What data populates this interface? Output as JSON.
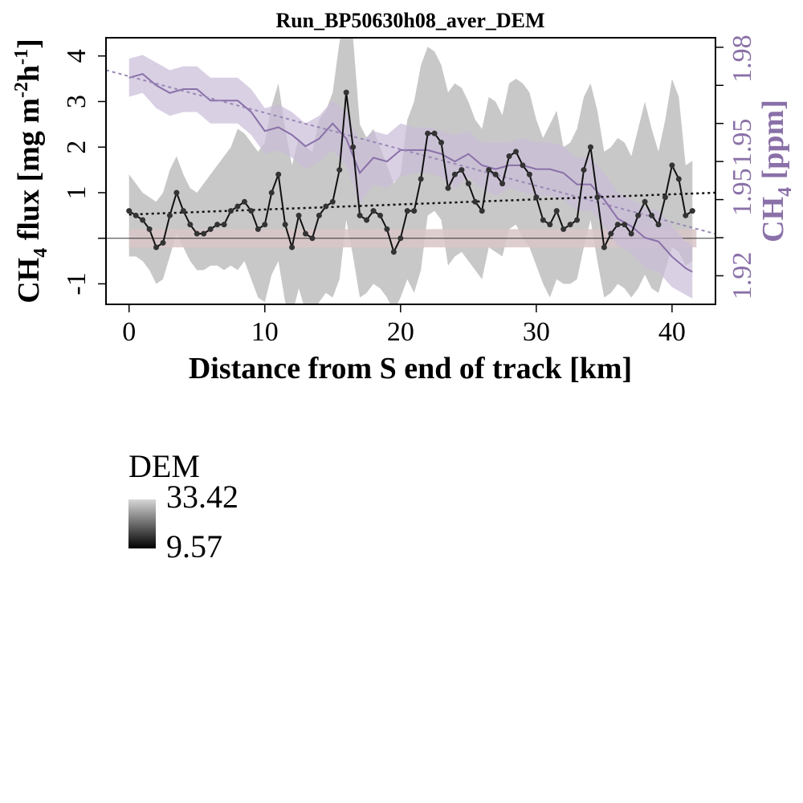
{
  "chart_data": {
    "type": "line",
    "title": "Run_BP50630h08_aver_DEM",
    "xlabel": "Distance from S end of track [km]",
    "ylabel_left": {
      "base": "CH",
      "sub": "4",
      "rest": " flux [mg m",
      "sup1": "-2",
      "mid": "h",
      "sup2": "-1",
      "end": "]"
    },
    "ylabel_right": {
      "base": "CH",
      "sub": "4",
      "rest": " [ppm]"
    },
    "x_ticks": [
      "0",
      "10",
      "20",
      "30",
      "40"
    ],
    "y_left_ticks": [
      "-1",
      "1",
      "2",
      "3",
      "4"
    ],
    "y_right_ticks": [
      "1.92",
      "1.95",
      "1.95",
      "1.98"
    ],
    "xlim": [
      -1.7,
      43.2
    ],
    "ylim_left": [
      -1.45,
      4.4
    ],
    "ylim_right": [
      1.9125,
      1.9825
    ],
    "colors": {
      "flux_line": "#111111",
      "flux_band": "#c8c8c8",
      "ch4_line": "#8a70a8",
      "ch4_band": "#c9bcd9",
      "ch4_axis": "#8a70a8",
      "baseline_band": "#d9c5c8",
      "flux_trend": "#111111",
      "ch4_trend": "#9a88b5"
    },
    "flux_series": {
      "x": [
        0.0,
        0.5,
        1.0,
        1.5,
        2.0,
        2.5,
        3.0,
        3.5,
        4.0,
        4.5,
        5.0,
        5.5,
        6.0,
        6.5,
        7.0,
        7.5,
        8.0,
        8.5,
        9.0,
        9.5,
        10.0,
        10.5,
        11.0,
        11.5,
        12.0,
        12.5,
        13.0,
        13.5,
        14.0,
        14.5,
        15.0,
        15.5,
        16.0,
        16.5,
        17.0,
        17.5,
        18.0,
        18.5,
        19.0,
        19.5,
        20.0,
        20.5,
        21.0,
        21.5,
        22.0,
        22.5,
        23.0,
        23.5,
        24.0,
        24.5,
        25.0,
        25.5,
        26.0,
        26.5,
        27.0,
        27.5,
        28.0,
        28.5,
        29.0,
        29.5,
        30.0,
        30.5,
        31.0,
        31.5,
        32.0,
        32.5,
        33.0,
        33.5,
        34.0,
        34.5,
        35.0,
        35.5,
        36.0,
        36.5,
        37.0,
        37.5,
        38.0,
        38.5,
        39.0,
        39.5,
        40.0,
        40.5,
        41.0,
        41.5
      ],
      "y": [
        0.6,
        0.5,
        0.4,
        0.2,
        -0.2,
        -0.1,
        0.5,
        1.0,
        0.6,
        0.3,
        0.1,
        0.1,
        0.2,
        0.3,
        0.3,
        0.6,
        0.7,
        0.8,
        0.6,
        0.2,
        0.3,
        1.0,
        1.4,
        0.3,
        -0.2,
        0.5,
        0.1,
        0.0,
        0.5,
        0.7,
        0.8,
        1.5,
        3.2,
        2.0,
        0.5,
        0.4,
        0.6,
        0.5,
        0.2,
        -0.3,
        0.0,
        0.6,
        0.6,
        1.3,
        2.3,
        2.3,
        2.1,
        1.1,
        1.4,
        1.5,
        1.2,
        0.8,
        0.6,
        1.5,
        1.4,
        1.2,
        1.8,
        1.9,
        1.6,
        1.4,
        0.9,
        0.4,
        0.3,
        0.6,
        0.2,
        0.3,
        0.4,
        1.5,
        2.0,
        0.9,
        -0.2,
        0.1,
        0.3,
        0.3,
        0.1,
        0.5,
        0.8,
        0.5,
        0.3,
        0.9,
        1.6,
        1.3,
        0.5,
        0.6
      ]
    },
    "flux_band": {
      "upper": [
        1.4,
        1.2,
        1.0,
        0.9,
        0.8,
        1.0,
        1.5,
        1.8,
        1.4,
        1.1,
        1.0,
        1.2,
        1.4,
        1.6,
        1.8,
        2.0,
        2.4,
        2.3,
        2.1,
        1.9,
        2.1,
        2.9,
        3.4,
        2.4,
        1.6,
        2.2,
        2.0,
        1.9,
        2.6,
        2.8,
        3.2,
        4.3,
        5.0,
        4.4,
        2.5,
        2.2,
        2.4,
        2.0,
        1.6,
        1.2,
        1.4,
        2.6,
        3.0,
        3.8,
        4.2,
        4.1,
        3.8,
        3.2,
        3.4,
        3.3,
        3.0,
        2.6,
        2.4,
        3.1,
        3.0,
        2.7,
        3.4,
        3.5,
        3.4,
        3.2,
        2.6,
        2.2,
        2.5,
        2.8,
        2.0,
        2.1,
        2.4,
        3.1,
        3.4,
        2.8,
        1.9,
        2.0,
        2.2,
        2.1,
        1.8,
        2.4,
        3.0,
        2.4,
        1.9,
        2.6,
        3.5,
        3.1,
        1.6,
        1.7
      ],
      "lower": [
        -0.4,
        -0.4,
        -0.5,
        -0.7,
        -1.0,
        -0.9,
        -0.4,
        0.1,
        -0.2,
        -0.5,
        -0.7,
        -0.7,
        -0.6,
        -0.6,
        -0.7,
        -0.6,
        -0.7,
        -0.5,
        -0.9,
        -1.3,
        -1.4,
        -0.8,
        -0.5,
        -1.4,
        -1.7,
        -1.1,
        -1.6,
        -1.7,
        -1.4,
        -1.2,
        -1.3,
        -0.9,
        0.4,
        -0.4,
        -1.3,
        -1.2,
        -1.0,
        -1.1,
        -1.3,
        -1.6,
        -1.3,
        -0.9,
        -1.2,
        -0.7,
        0.5,
        0.6,
        0.4,
        -0.6,
        -0.4,
        -0.3,
        -0.5,
        -0.7,
        -0.9,
        -0.2,
        -0.3,
        -0.4,
        0.2,
        0.3,
        0.0,
        -0.2,
        -0.6,
        -1.0,
        -1.3,
        -0.9,
        -1.0,
        -1.0,
        -0.9,
        -0.2,
        0.4,
        -0.5,
        -1.3,
        -1.2,
        -1.0,
        -1.1,
        -1.3,
        -1.1,
        -0.8,
        -1.1,
        -1.2,
        -0.7,
        -0.2,
        -0.3,
        -0.6,
        -0.5
      ]
    },
    "ch4_series": {
      "x": [
        0,
        1,
        2,
        3,
        4,
        5,
        6,
        7,
        8,
        9,
        10,
        11,
        12,
        13,
        14,
        15,
        16,
        17,
        18,
        19,
        20,
        21,
        22,
        23,
        24,
        25,
        26,
        27,
        28,
        29,
        30,
        31,
        32,
        33,
        34,
        35,
        36,
        37,
        38,
        39,
        40,
        41,
        41.5
      ],
      "y": [
        1.972,
        1.973,
        1.97,
        1.968,
        1.969,
        1.969,
        1.966,
        1.966,
        1.966,
        1.963,
        1.958,
        1.959,
        1.957,
        1.954,
        1.956,
        1.96,
        1.956,
        1.947,
        1.951,
        1.95,
        1.953,
        1.953,
        1.953,
        1.952,
        1.95,
        1.952,
        1.949,
        1.948,
        1.949,
        1.949,
        1.948,
        1.948,
        1.947,
        1.944,
        1.944,
        1.94,
        1.935,
        1.933,
        1.93,
        1.929,
        1.925,
        1.922,
        1.921
      ]
    },
    "ch4_band": {
      "upper": [
        1.977,
        1.978,
        1.976,
        1.974,
        1.975,
        1.975,
        1.972,
        1.972,
        1.972,
        1.969,
        1.964,
        1.965,
        1.963,
        1.96,
        1.962,
        1.966,
        1.963,
        1.955,
        1.958,
        1.957,
        1.96,
        1.959,
        1.959,
        1.958,
        1.957,
        1.958,
        1.955,
        1.955,
        1.955,
        1.956,
        1.955,
        1.955,
        1.954,
        1.951,
        1.951,
        1.947,
        1.942,
        1.94,
        1.938,
        1.937,
        1.933,
        1.929,
        1.928
      ],
      "lower": [
        1.967,
        1.968,
        1.964,
        1.962,
        1.963,
        1.963,
        1.96,
        1.96,
        1.96,
        1.957,
        1.952,
        1.953,
        1.951,
        1.948,
        1.95,
        1.953,
        1.949,
        1.939,
        1.944,
        1.943,
        1.946,
        1.947,
        1.947,
        1.946,
        1.943,
        1.946,
        1.943,
        1.941,
        1.943,
        1.942,
        1.941,
        1.941,
        1.94,
        1.937,
        1.937,
        1.933,
        1.928,
        1.926,
        1.922,
        1.921,
        1.917,
        1.915,
        1.914
      ]
    },
    "flux_trend": {
      "x": [
        0,
        43.2
      ],
      "y": [
        0.52,
        1.0
      ]
    },
    "ch4_trend": {
      "x": [
        -1.7,
        43.2
      ],
      "y": [
        1.974,
        1.931
      ]
    },
    "baseline_band": {
      "x": [
        0,
        41.8
      ],
      "y": [
        -0.2,
        0.2
      ]
    },
    "zero_line": 0,
    "legend": {
      "title": "DEM",
      "max_label": "33.42",
      "min_label": "9.57"
    }
  }
}
